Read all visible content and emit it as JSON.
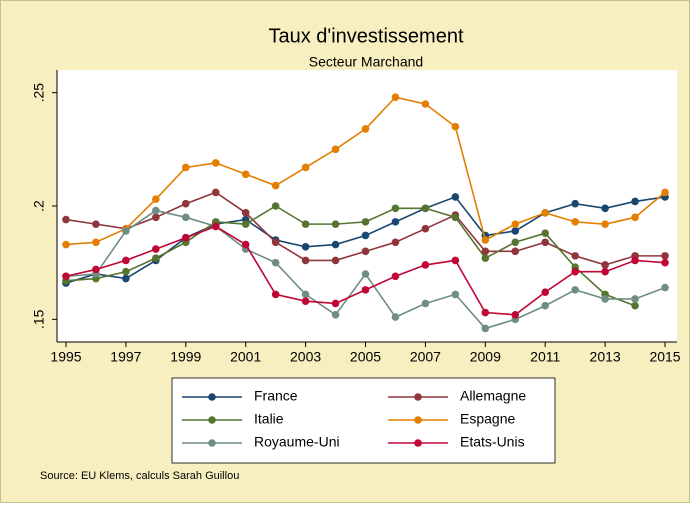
{
  "chart_data": {
    "type": "line",
    "title": "Taux d'investissement",
    "subtitle": "Secteur Marchand",
    "x": [
      1995,
      1996,
      1997,
      1998,
      1999,
      2000,
      2001,
      2002,
      2003,
      2004,
      2005,
      2006,
      2007,
      2008,
      2009,
      2010,
      2011,
      2012,
      2013,
      2014,
      2015
    ],
    "series": [
      {
        "name": "France",
        "color": "#1a476f",
        "values": [
          0.166,
          0.17,
          0.168,
          0.176,
          0.186,
          0.192,
          0.194,
          0.185,
          0.182,
          0.183,
          0.187,
          0.193,
          0.199,
          0.204,
          0.187,
          0.189,
          0.197,
          0.201,
          0.199,
          0.202,
          0.204
        ]
      },
      {
        "name": "Allemagne",
        "color": "#90353b",
        "values": [
          0.194,
          0.192,
          0.19,
          0.195,
          0.201,
          0.206,
          0.197,
          0.184,
          0.176,
          0.176,
          0.18,
          0.184,
          0.19,
          0.196,
          0.18,
          0.18,
          0.184,
          0.178,
          0.174,
          0.178,
          0.178
        ]
      },
      {
        "name": "Italie",
        "color": "#55752f",
        "values": [
          0.167,
          0.168,
          0.171,
          0.177,
          0.184,
          0.193,
          0.192,
          0.2,
          0.192,
          0.192,
          0.193,
          0.199,
          0.199,
          0.195,
          0.177,
          0.184,
          0.188,
          0.173,
          0.161,
          0.156,
          null
        ]
      },
      {
        "name": "Espagne",
        "color": "#e37e00",
        "values": [
          0.183,
          0.184,
          0.19,
          0.203,
          0.217,
          0.219,
          0.214,
          0.209,
          0.217,
          0.225,
          0.234,
          0.248,
          0.245,
          0.235,
          0.185,
          0.192,
          0.197,
          0.193,
          0.192,
          0.195,
          0.206
        ]
      },
      {
        "name": "Royaume-Uni",
        "color": "#6e8e84",
        "values": [
          0.169,
          0.17,
          0.189,
          0.198,
          0.195,
          0.191,
          0.181,
          0.175,
          0.161,
          0.152,
          0.17,
          0.151,
          0.157,
          0.161,
          0.146,
          0.15,
          0.156,
          0.163,
          0.159,
          0.159,
          0.164
        ]
      },
      {
        "name": "Etats-Unis",
        "color": "#c10534",
        "values": [
          0.169,
          0.172,
          0.176,
          0.181,
          0.186,
          0.191,
          0.183,
          0.161,
          0.158,
          0.157,
          0.163,
          0.169,
          0.174,
          0.176,
          0.153,
          0.152,
          0.162,
          0.171,
          0.171,
          0.176,
          0.175
        ]
      }
    ],
    "xlim": [
      1994.7,
      2015.4
    ],
    "xticks": [
      1995,
      1997,
      1999,
      2001,
      2003,
      2005,
      2007,
      2009,
      2011,
      2013,
      2015
    ],
    "ylim": [
      0.14,
      0.26
    ],
    "yticks": [
      {
        "value": 0.15,
        "label": ".15"
      },
      {
        "value": 0.2,
        "label": ".2"
      },
      {
        "value": 0.25,
        "label": ".25"
      }
    ],
    "grid": false,
    "legend": "bottom",
    "source": "Source: EU Klems, calculs Sarah Guillou"
  }
}
